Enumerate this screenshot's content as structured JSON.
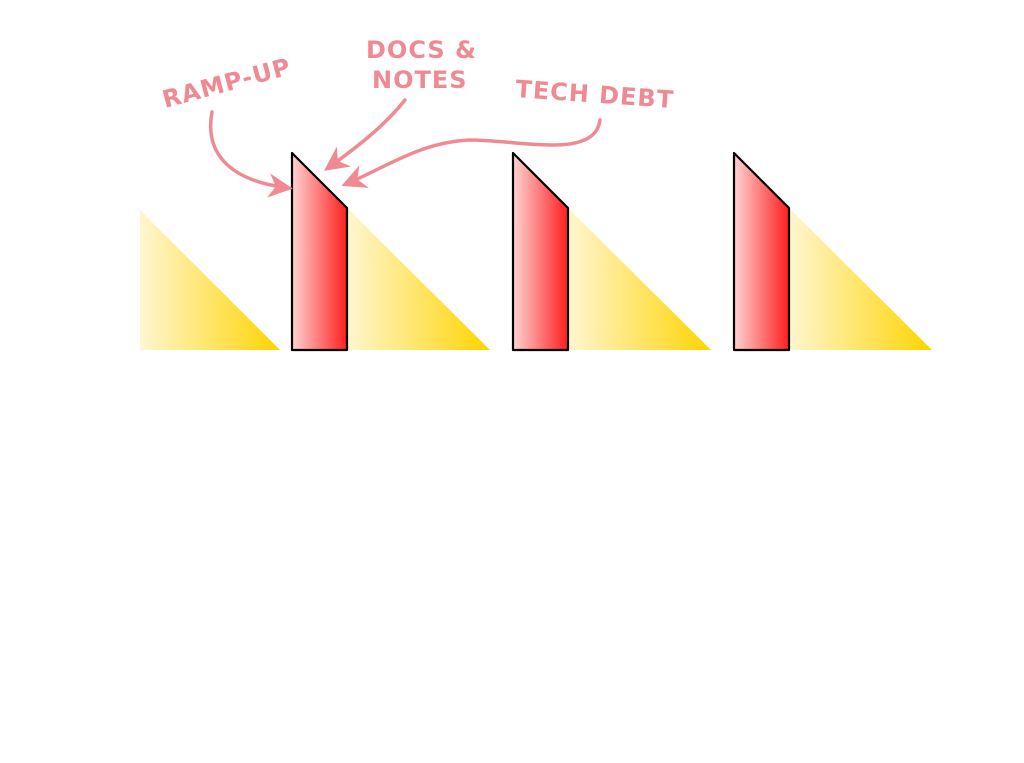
{
  "labels": {
    "ramp_up": "RAMP-UP",
    "docs_line1": "DOCS &",
    "docs_line2": "NOTES",
    "tech_debt": "TECH DEBT"
  },
  "colors": {
    "annotation": "#f08a92",
    "red_block_light": "#ffd2d2",
    "red_block_dark": "#ff1e1e",
    "yellow_light": "#fff6d0",
    "yellow_dark": "#ffd400",
    "outline": "#000000"
  }
}
